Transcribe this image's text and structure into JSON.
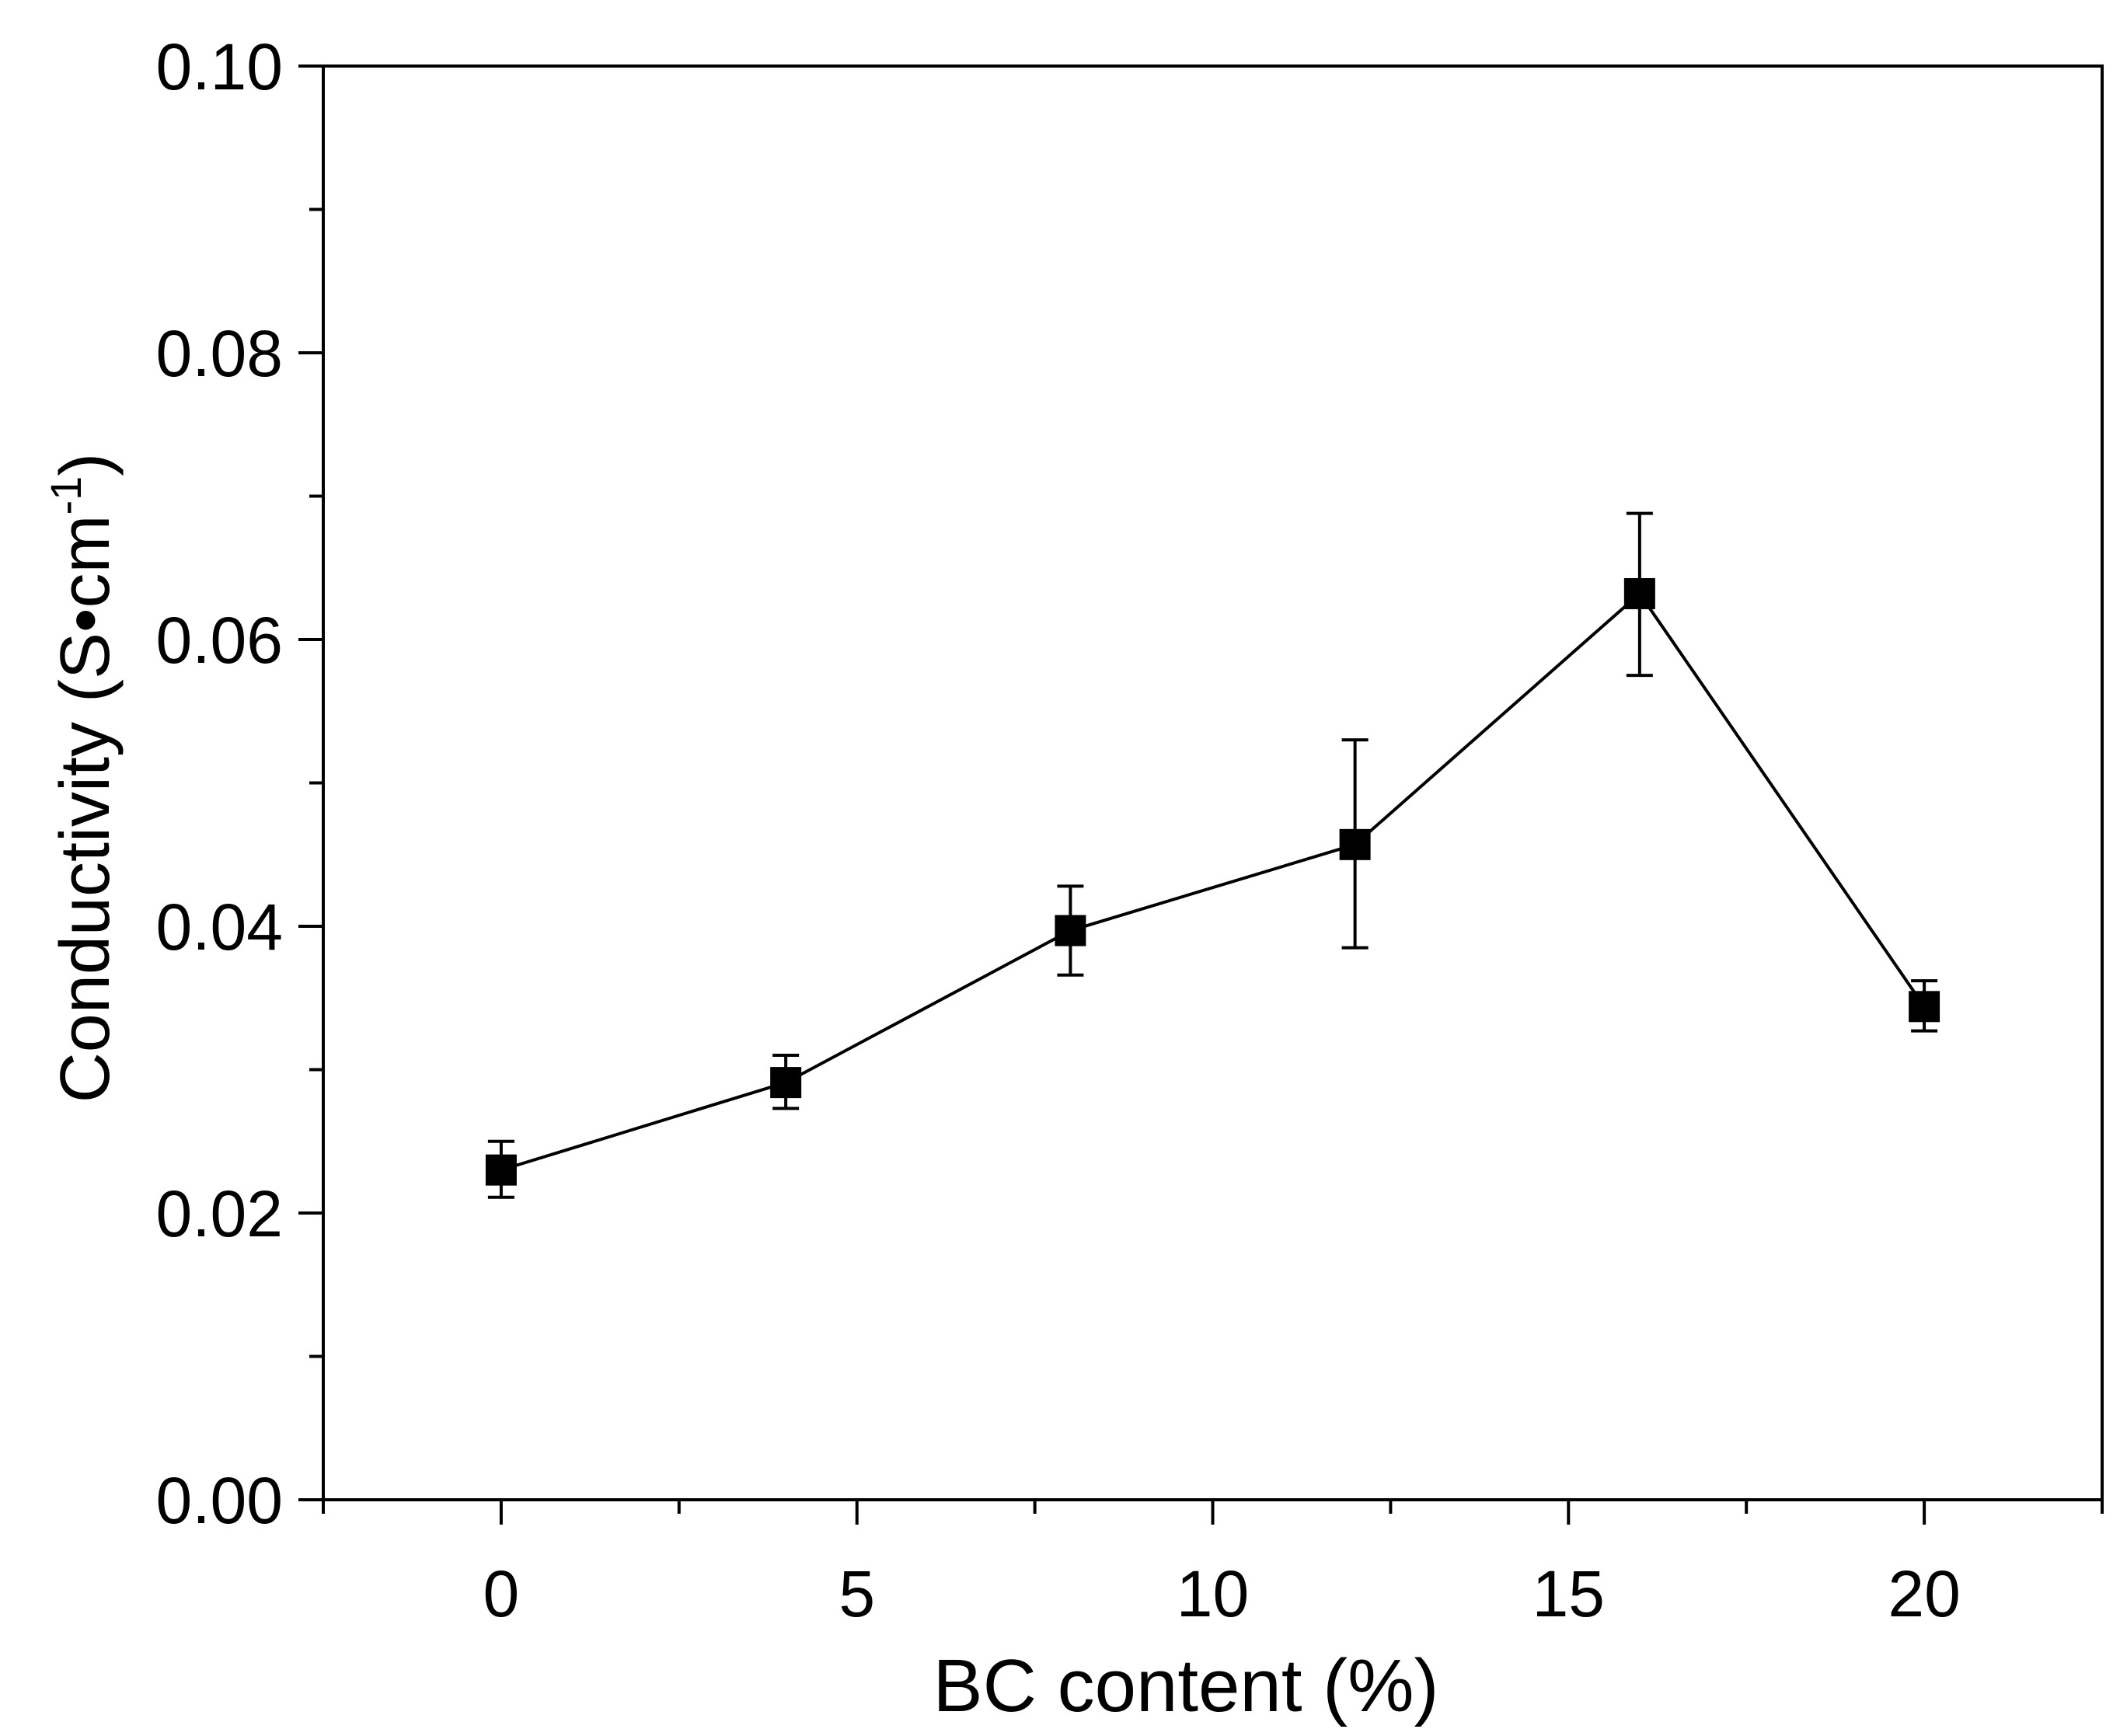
{
  "chart_data": {
    "type": "line",
    "title": "",
    "xlabel": "BC content (%)",
    "ylabel_main": "Conductivity (S•cm",
    "ylabel_superscript": "-1",
    "ylabel_close": ")",
    "xlim": [
      -2.5,
      22.5
    ],
    "ylim": [
      0.0,
      0.1
    ],
    "x_ticks": [
      0,
      5,
      10,
      15,
      20
    ],
    "x_tick_labels": [
      "0",
      "5",
      "10",
      "15",
      "20"
    ],
    "x_minor_ticks": [
      -2.5,
      2.5,
      7.5,
      12.5,
      17.5,
      22.5
    ],
    "y_ticks": [
      0.0,
      0.02,
      0.04,
      0.06,
      0.08,
      0.1
    ],
    "y_tick_labels": [
      "0.00",
      "0.02",
      "0.04",
      "0.06",
      "0.08",
      "0.10"
    ],
    "y_minor_ticks": [
      0.01,
      0.03,
      0.05,
      0.07,
      0.09
    ],
    "grid": false,
    "legend": "none",
    "series": [
      {
        "marker": "square",
        "color": "#000000",
        "points": [
          {
            "x": 0,
            "y": 0.023,
            "err_low": 0.0211,
            "err_high": 0.025
          },
          {
            "x": 4,
            "y": 0.0291,
            "err_low": 0.0273,
            "err_high": 0.031
          },
          {
            "x": 8,
            "y": 0.0397,
            "err_low": 0.0366,
            "err_high": 0.0428
          },
          {
            "x": 12,
            "y": 0.0457,
            "err_low": 0.0385,
            "err_high": 0.053
          },
          {
            "x": 16,
            "y": 0.0632,
            "err_low": 0.0575,
            "err_high": 0.0688
          },
          {
            "x": 20,
            "y": 0.0344,
            "err_low": 0.0327,
            "err_high": 0.0362
          }
        ]
      }
    ]
  }
}
